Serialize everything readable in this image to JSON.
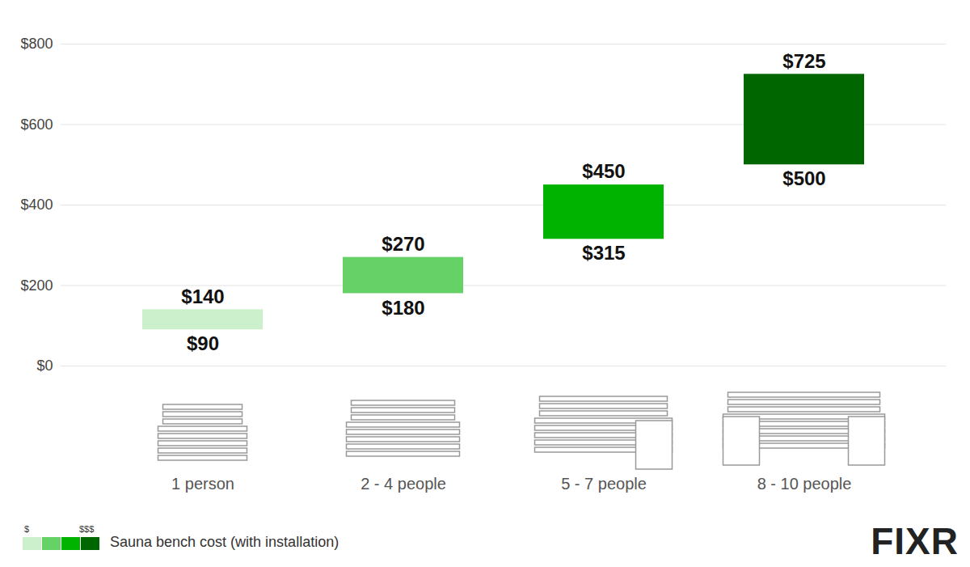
{
  "chart_data": {
    "type": "range_bar",
    "categories": [
      "1 person",
      "2 - 4 people",
      "5 - 7 people",
      "8 - 10 people"
    ],
    "values": [
      [
        90,
        140
      ],
      [
        180,
        270
      ],
      [
        315,
        450
      ],
      [
        500,
        725
      ]
    ],
    "value_labels": [
      [
        "$90",
        "$140"
      ],
      [
        "$180",
        "$270"
      ],
      [
        "$315",
        "$450"
      ],
      [
        "$500",
        "$725"
      ]
    ],
    "colors": [
      "#ccf0cc",
      "#66d166",
      "#00b300",
      "#006600"
    ],
    "ylim": [
      0,
      800
    ],
    "yticks": [
      {
        "value": 0,
        "label": "$0"
      },
      {
        "value": 200,
        "label": "$200"
      },
      {
        "value": 400,
        "label": "$400"
      },
      {
        "value": 600,
        "label": "$600"
      },
      {
        "value": 800,
        "label": "$800"
      }
    ],
    "grid": true,
    "data_labels": true,
    "legend_title": "Sauna bench cost (with installation)",
    "legend_range_labels": [
      "$",
      "$$$"
    ],
    "logo": "FIXR"
  }
}
